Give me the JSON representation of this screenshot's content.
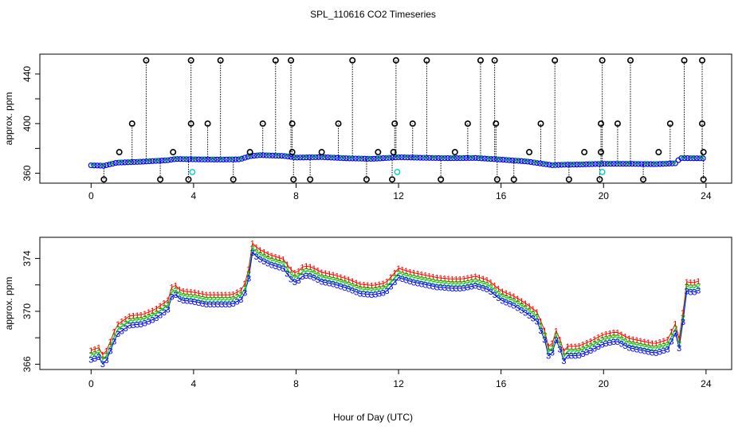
{
  "title": "SPL_110616  CO2 Timeseries",
  "xlabel": "Hour of Day (UTC)",
  "chart_data": [
    {
      "type": "scatter",
      "panel": "top",
      "ylabel": "approx. ppm",
      "xlim": [
        -2,
        25
      ],
      "ylim": [
        352,
        456
      ],
      "xticks": [
        0,
        4,
        8,
        12,
        16,
        20,
        24
      ],
      "yticks": [
        360,
        400,
        440
      ],
      "yticks_minor": [
        380,
        420
      ],
      "grid": false,
      "baseline": [
        [
          0.0,
          366.4
        ],
        [
          0.5,
          366.0
        ],
        [
          1.0,
          368.5
        ],
        [
          2.0,
          369.3
        ],
        [
          3.0,
          370.5
        ],
        [
          3.3,
          371.5
        ],
        [
          4.0,
          371.2
        ],
        [
          5.0,
          371.0
        ],
        [
          5.8,
          371.2
        ],
        [
          6.2,
          373.8
        ],
        [
          6.6,
          374.6
        ],
        [
          7.5,
          374.0
        ],
        [
          8.0,
          372.6
        ],
        [
          9.0,
          373.0
        ],
        [
          10.0,
          372.0
        ],
        [
          11.0,
          371.6
        ],
        [
          12.0,
          372.9
        ],
        [
          13.0,
          372.4
        ],
        [
          14.0,
          372.1
        ],
        [
          15.0,
          372.3
        ],
        [
          16.0,
          371.0
        ],
        [
          17.0,
          369.5
        ],
        [
          18.0,
          366.5
        ],
        [
          18.5,
          366.9
        ],
        [
          19.0,
          367.0
        ],
        [
          20.0,
          367.6
        ],
        [
          21.0,
          367.6
        ],
        [
          22.0,
          367.3
        ],
        [
          22.8,
          368.0
        ],
        [
          23.0,
          372.2
        ],
        [
          23.8,
          372.0
        ]
      ],
      "spikes_high": [
        2.15,
        3.9,
        5.05,
        7.2,
        7.8,
        10.2,
        11.9,
        13.1,
        15.2,
        15.75,
        18.1,
        19.95,
        21.05,
        23.15,
        23.85
      ],
      "spikes_mid": [
        1.6,
        3.9,
        4.55,
        6.7,
        7.85,
        9.65,
        11.85,
        12.55,
        14.7,
        15.8,
        17.55,
        19.9,
        20.55,
        22.6,
        23.85
      ],
      "spikes_low": [
        0.5,
        2.7,
        3.8,
        5.55,
        7.9,
        8.55,
        10.75,
        11.75,
        13.65,
        15.85,
        16.5,
        18.65,
        19.85,
        21.55,
        23.9
      ],
      "bumps": [
        1.1,
        3.2,
        6.2,
        7.85,
        9.0,
        11.2,
        11.8,
        14.2,
        17.1,
        19.25,
        19.9,
        22.15,
        23.9
      ],
      "spike_values": {
        "high": 451,
        "mid": 400,
        "low": 355,
        "bump": 377
      },
      "cyan_points": [
        [
          3.95,
          361
        ],
        [
          11.95,
          361
        ],
        [
          19.95,
          361
        ]
      ],
      "colors": {
        "spike": "#000000",
        "series": "#0000ff",
        "series_alt": "#00cc00",
        "series_red": "#ff0000",
        "cyan": "#00cccc"
      }
    },
    {
      "type": "line",
      "panel": "bottom",
      "ylabel": "approx. ppm",
      "xlim": [
        -2,
        25
      ],
      "ylim": [
        365.6,
        375.6
      ],
      "xticks": [
        0,
        4,
        8,
        12,
        16,
        20,
        24
      ],
      "yticks": [
        366,
        370,
        374
      ],
      "yticks_minor": [
        368,
        372
      ],
      "grid": false,
      "series_markers": [
        "1",
        "2",
        "3"
      ],
      "series": [
        {
          "marker": "1",
          "color": "#ff0000",
          "offset": 0.35
        },
        {
          "marker": "2",
          "color": "#00cc00",
          "offset": 0.0
        },
        {
          "marker": "3",
          "color": "#0000ff",
          "offset": -0.35
        }
      ],
      "x": [
        0.0,
        0.3,
        0.5,
        0.8,
        1.0,
        1.5,
        2.0,
        2.5,
        3.0,
        3.2,
        3.3,
        3.5,
        4.0,
        4.5,
        5.0,
        5.5,
        5.9,
        6.1,
        6.3,
        6.5,
        7.0,
        7.5,
        7.8,
        8.0,
        8.3,
        8.6,
        9.0,
        9.5,
        10.0,
        10.5,
        11.0,
        11.5,
        12.0,
        12.5,
        13.0,
        13.5,
        14.0,
        14.5,
        15.0,
        15.5,
        16.0,
        16.5,
        17.0,
        17.4,
        17.7,
        17.9,
        18.2,
        18.4,
        18.6,
        19.0,
        19.5,
        20.0,
        20.5,
        21.0,
        21.5,
        22.0,
        22.5,
        22.8,
        23.0,
        23.2,
        23.5,
        23.8
      ],
      "values": [
        366.7,
        366.9,
        366.2,
        367.6,
        368.6,
        369.3,
        369.4,
        369.8,
        370.5,
        371.8,
        371.6,
        371.2,
        371.1,
        370.9,
        370.9,
        370.9,
        371.3,
        372.2,
        374.8,
        374.4,
        373.9,
        373.6,
        372.8,
        372.5,
        373.1,
        373.0,
        372.6,
        372.4,
        372.1,
        371.7,
        371.6,
        371.8,
        372.9,
        372.6,
        372.4,
        372.2,
        372.1,
        372.1,
        372.3,
        372.0,
        371.2,
        370.8,
        370.2,
        369.6,
        368.2,
        366.6,
        368.5,
        366.5,
        367.0,
        367.0,
        367.4,
        367.9,
        368.1,
        367.6,
        367.4,
        367.2,
        367.5,
        368.7,
        367.2,
        371.9,
        371.8,
        372.0
      ],
      "color_line": "#0000ff"
    }
  ]
}
